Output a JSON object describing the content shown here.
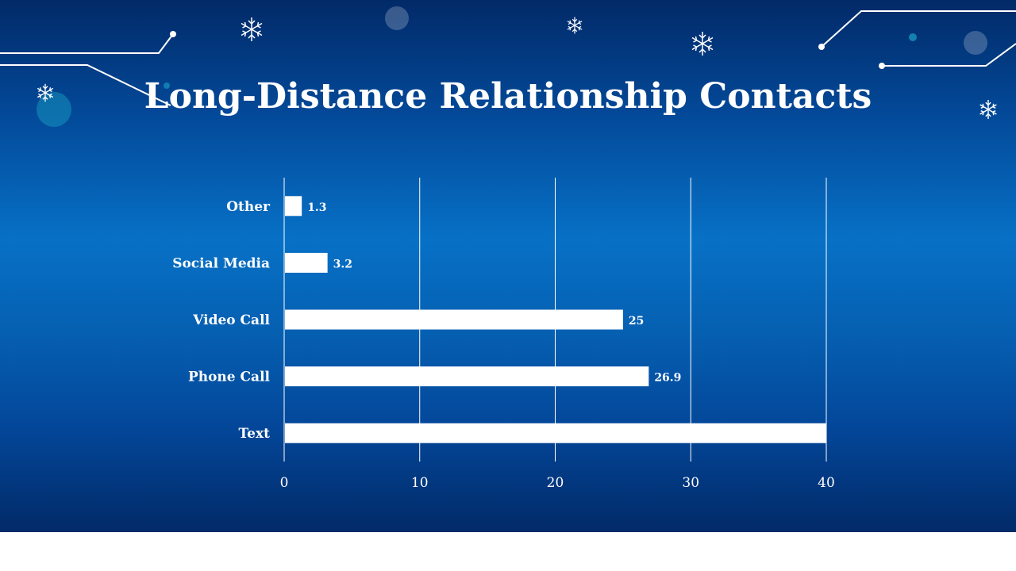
{
  "slide": {
    "title": "Long-Distance Relationship Contacts"
  },
  "colors": {
    "background_top": "#022a68",
    "background_mid": "#0771c6",
    "bar": "#ffffff",
    "text": "#ffffff"
  },
  "decorations": {
    "icons": [
      "snowflake-icon",
      "circuit-line-decoration",
      "bubble-decoration"
    ]
  },
  "chart_data": {
    "type": "bar",
    "orientation": "horizontal",
    "title": "Long-Distance Relationship Contacts",
    "categories": [
      "Other",
      "Social Media",
      "Video Call",
      "Phone Call",
      "Text"
    ],
    "values": [
      1.3,
      3.2,
      25,
      26.9,
      40
    ],
    "data_labels": [
      "1.3",
      "3.2",
      "25",
      "26.9",
      ""
    ],
    "xlim": [
      0,
      40
    ],
    "xticks": [
      0,
      10,
      20,
      30,
      40
    ],
    "xtick_labels": [
      "0",
      "10",
      "20",
      "30",
      "40"
    ],
    "grid": true,
    "legend": "none"
  }
}
